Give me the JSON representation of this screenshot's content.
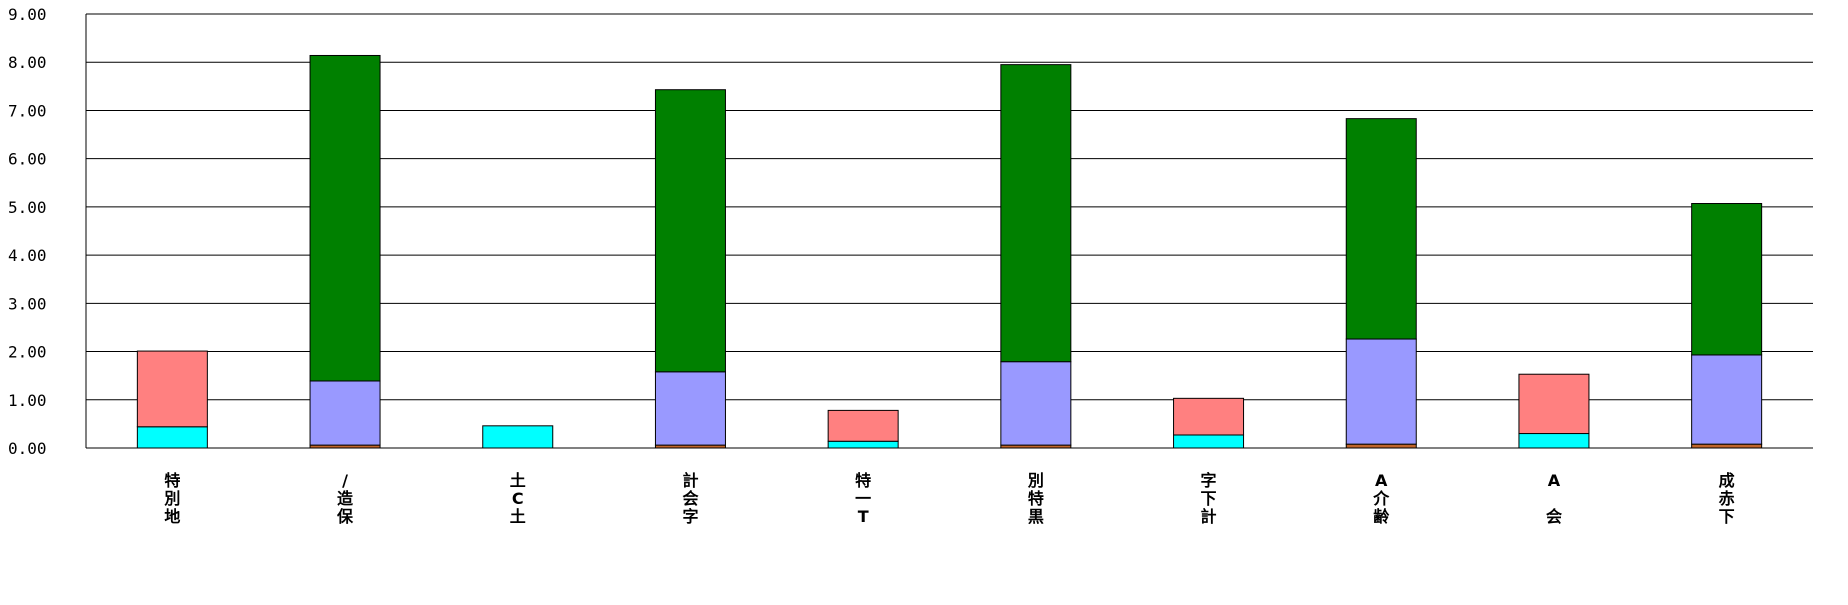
{
  "chart_data": {
    "type": "bar",
    "stacked": true,
    "title": "",
    "xlabel": "",
    "ylabel": "",
    "ylim": [
      0,
      9
    ],
    "yticks": [
      "0.00",
      "1.00",
      "2.00",
      "3.00",
      "4.00",
      "5.00",
      "6.00",
      "7.00",
      "8.00",
      "9.00"
    ],
    "grid": true,
    "legend": "none",
    "categories": [
      [
        "特",
        "別",
        "地"
      ],
      [
        "/",
        "造",
        "保"
      ],
      [
        "土",
        "C",
        "土"
      ],
      [
        "計",
        "会",
        "字"
      ],
      [
        "特",
        "一",
        "T"
      ],
      [
        "別",
        "特",
        "黒"
      ],
      [
        "字",
        "下",
        "計"
      ],
      [
        "A",
        "介",
        "齢"
      ],
      [
        "A",
        "",
        "会"
      ],
      [
        "成",
        "赤",
        "下"
      ]
    ],
    "series": [
      {
        "color": "#c0652a",
        "values": [
          0.0,
          0.06,
          0.0,
          0.06,
          0.0,
          0.06,
          0.0,
          0.08,
          0.0,
          0.08
        ]
      },
      {
        "color": "#00ffff",
        "values": [
          0.44,
          0.0,
          0.46,
          0.0,
          0.14,
          0.0,
          0.27,
          0.0,
          0.3,
          0.0
        ]
      },
      {
        "color": "#9999ff",
        "values": [
          0.0,
          1.33,
          0.0,
          1.52,
          0.0,
          1.73,
          0.0,
          2.18,
          0.0,
          1.85
        ]
      },
      {
        "color": "#ff8080",
        "values": [
          1.57,
          0.0,
          0.0,
          0.0,
          0.64,
          0.0,
          0.76,
          0.0,
          1.23,
          0.0
        ]
      },
      {
        "color": "#008000",
        "values": [
          0.0,
          6.75,
          0.0,
          5.85,
          0.0,
          6.16,
          0.0,
          4.57,
          0.0,
          3.14
        ]
      }
    ]
  }
}
